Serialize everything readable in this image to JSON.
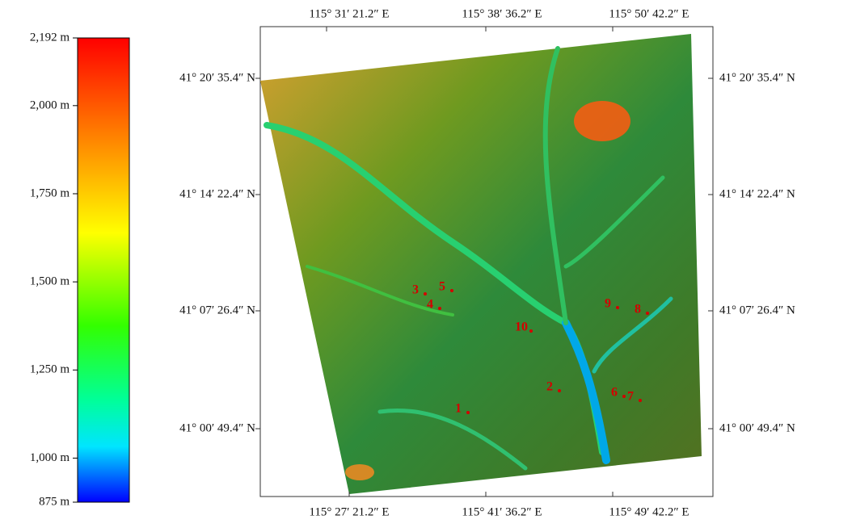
{
  "colorbar": {
    "range": [
      875,
      2192
    ],
    "ticks": [
      {
        "value": 2192,
        "label": "2,192 m"
      },
      {
        "value": 2000,
        "label": "2,000 m"
      },
      {
        "value": 1750,
        "label": "1,750 m"
      },
      {
        "value": 1500,
        "label": "1,500 m"
      },
      {
        "value": 1250,
        "label": "1,250 m"
      },
      {
        "value": 1000,
        "label": "1,000 m"
      },
      {
        "value": 875,
        "label": "875 m"
      }
    ]
  },
  "map": {
    "top_labels": [
      "115° 31′ 21.2″ E",
      "115° 38′ 36.2″ E",
      "115° 50′ 42.2″ E"
    ],
    "bottom_labels": [
      "115° 27′ 21.2″ E",
      "115° 41′ 36.2″ E",
      "115° 49′ 42.2″ E"
    ],
    "left_labels": [
      "41° 20′ 35.4″ N",
      "41° 14′ 22.4″ N",
      "41° 07′ 26.4″ N",
      "41° 00′ 49.4″ N"
    ],
    "right_labels": [
      "41° 20′ 35.4″ N",
      "41° 14′ 22.4″ N",
      "41° 07′ 26.4″ N",
      "41° 00′ 49.4″ N"
    ],
    "points": [
      "1",
      "2",
      "3",
      "4",
      "5",
      "6",
      "7",
      "8",
      "9",
      "10"
    ]
  }
}
